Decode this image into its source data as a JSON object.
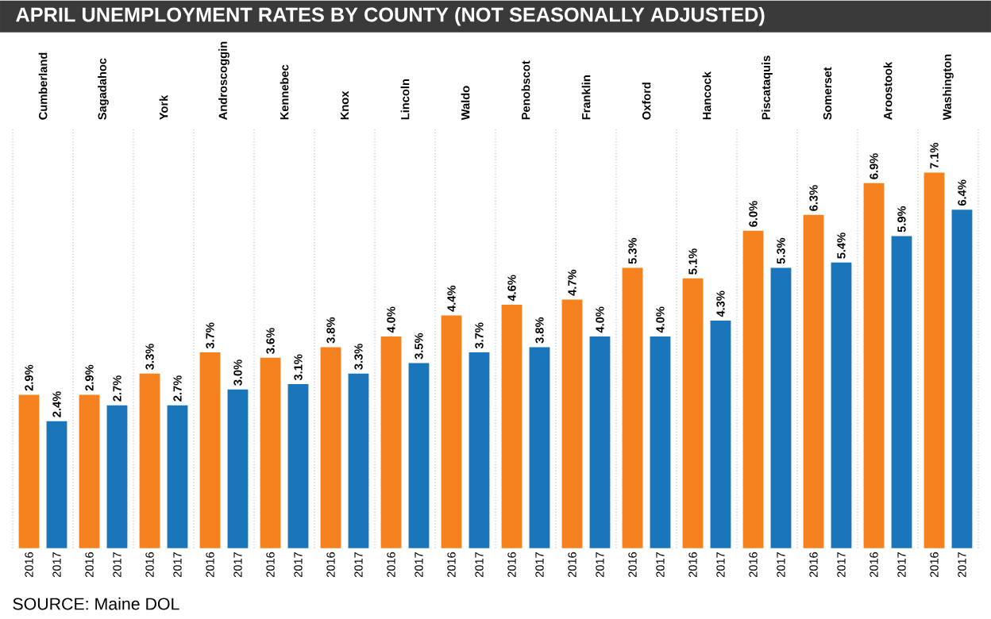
{
  "chart_data": {
    "type": "bar",
    "title": "APRIL UNEMPLOYMENT RATES BY COUNTY (NOT SEASONALLY ADJUSTED)",
    "categories": [
      "Cumberland",
      "Sagadahoc",
      "York",
      "Androscoggin",
      "Kennebec",
      "Knox",
      "Lincoln",
      "Waldo",
      "Penobscot",
      "Franklin",
      "Oxford",
      "Hancock",
      "Piscataquis",
      "Somerset",
      "Aroostook",
      "Washington"
    ],
    "series": [
      {
        "name": "2016",
        "color": "#f5821f",
        "values": [
          2.9,
          2.9,
          3.3,
          3.7,
          3.6,
          3.8,
          4.0,
          4.4,
          4.6,
          4.7,
          5.3,
          5.1,
          6.0,
          6.3,
          6.9,
          7.1
        ],
        "value_labels": [
          "2.9%",
          "2.9%",
          "3.3%",
          "3.7%",
          "3.6%",
          "3.8%",
          "4.0%",
          "4.4%",
          "4.6%",
          "4.7%",
          "5.3%",
          "5.1%",
          "6.0%",
          "6.3%",
          "6.9%",
          "7.1%"
        ]
      },
      {
        "name": "2017",
        "color": "#1b75bb",
        "values": [
          2.4,
          2.7,
          2.7,
          3.0,
          3.1,
          3.3,
          3.5,
          3.7,
          3.8,
          4.0,
          4.0,
          4.3,
          5.3,
          5.4,
          5.9,
          6.4
        ],
        "value_labels": [
          "2.4%",
          "2.7%",
          "2.7%",
          "3.0%",
          "3.1%",
          "3.3%",
          "3.5%",
          "3.7%",
          "3.8%",
          "4.0%",
          "4.0%",
          "4.3%",
          "5.3%",
          "5.4%",
          "5.9%",
          "6.4%"
        ]
      }
    ],
    "grid": "x",
    "annotations": [
      "SOURCE: Maine DOL"
    ]
  }
}
